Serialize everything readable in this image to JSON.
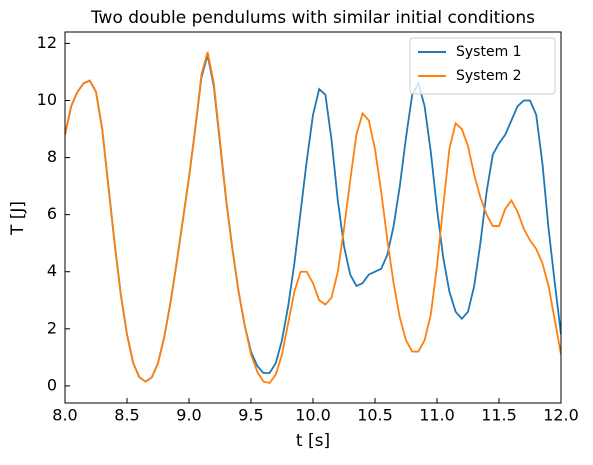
{
  "chart_data": {
    "type": "line",
    "title": "Two double pendulums with similar initial conditions",
    "x_label": "t [s]",
    "y_label": "T [J]",
    "x": [
      8.0,
      8.05,
      8.1,
      8.15,
      8.2,
      8.25,
      8.3,
      8.35,
      8.4,
      8.45,
      8.5,
      8.55,
      8.6,
      8.65,
      8.7,
      8.75,
      8.8,
      8.85,
      8.9,
      8.95,
      9.0,
      9.05,
      9.1,
      9.15,
      9.2,
      9.25,
      9.3,
      9.35,
      9.4,
      9.45,
      9.5,
      9.55,
      9.6,
      9.65,
      9.7,
      9.75,
      9.8,
      9.85,
      9.9,
      9.95,
      10.0,
      10.05,
      10.1,
      10.15,
      10.2,
      10.25,
      10.3,
      10.35,
      10.4,
      10.45,
      10.5,
      10.55,
      10.6,
      10.65,
      10.7,
      10.75,
      10.8,
      10.85,
      10.9,
      10.95,
      11.0,
      11.05,
      11.1,
      11.15,
      11.2,
      11.25,
      11.3,
      11.35,
      11.4,
      11.45,
      11.5,
      11.55,
      11.6,
      11.65,
      11.7,
      11.75,
      11.8,
      11.85,
      11.9,
      11.95,
      12.0
    ],
    "series": [
      {
        "name": "System 1",
        "color": "#1f77b4",
        "values": [
          8.8,
          9.8,
          10.3,
          10.6,
          10.7,
          10.3,
          9.0,
          7.0,
          5.0,
          3.2,
          1.8,
          0.8,
          0.3,
          0.15,
          0.3,
          0.8,
          1.7,
          2.9,
          4.3,
          5.8,
          7.3,
          9.0,
          10.8,
          11.6,
          10.5,
          8.5,
          6.5,
          4.8,
          3.3,
          2.1,
          1.2,
          0.7,
          0.45,
          0.45,
          0.8,
          1.6,
          2.8,
          4.3,
          6.1,
          7.9,
          9.5,
          10.4,
          10.2,
          8.6,
          6.5,
          4.9,
          3.9,
          3.5,
          3.6,
          3.9,
          4.0,
          4.1,
          4.6,
          5.6,
          7.0,
          8.7,
          10.2,
          10.6,
          9.8,
          8.2,
          6.2,
          4.5,
          3.3,
          2.6,
          2.35,
          2.6,
          3.5,
          5.0,
          6.8,
          8.1,
          8.5,
          8.8,
          9.3,
          9.8,
          10.0,
          10.0,
          9.5,
          7.8,
          5.5,
          3.6,
          1.8
        ]
      },
      {
        "name": "System 2",
        "color": "#ff7f0e",
        "values": [
          8.8,
          9.8,
          10.3,
          10.6,
          10.7,
          10.3,
          9.0,
          7.0,
          5.0,
          3.2,
          1.8,
          0.8,
          0.3,
          0.15,
          0.3,
          0.8,
          1.7,
          2.9,
          4.3,
          5.8,
          7.3,
          9.0,
          10.9,
          11.7,
          10.6,
          8.6,
          6.5,
          4.8,
          3.3,
          2.1,
          1.1,
          0.5,
          0.15,
          0.1,
          0.4,
          1.1,
          2.2,
          3.3,
          4.0,
          4.0,
          3.6,
          3.0,
          2.85,
          3.1,
          4.0,
          5.5,
          7.2,
          8.8,
          9.55,
          9.3,
          8.3,
          6.8,
          5.1,
          3.6,
          2.4,
          1.6,
          1.2,
          1.2,
          1.6,
          2.5,
          4.2,
          6.3,
          8.3,
          9.2,
          9.0,
          8.4,
          7.4,
          6.6,
          6.0,
          5.6,
          5.6,
          6.2,
          6.5,
          6.1,
          5.5,
          5.1,
          4.8,
          4.3,
          3.5,
          2.3,
          1.1
        ]
      }
    ],
    "xlim": [
      8,
      12
    ],
    "xticks": [
      {
        "value": 8,
        "label": "8.0"
      },
      8.5,
      {
        "value": 9,
        "label": "9.0"
      },
      9.5,
      {
        "value": 10,
        "label": "10.0"
      },
      10.5,
      {
        "value": 11,
        "label": "11.0"
      },
      11.5,
      {
        "value": 12,
        "label": "12.0"
      }
    ],
    "ylim": [
      -0.6,
      12.4
    ],
    "yticks": [
      0,
      2,
      4,
      6,
      8,
      10,
      12
    ],
    "legend": "upper right",
    "grid": false
  }
}
